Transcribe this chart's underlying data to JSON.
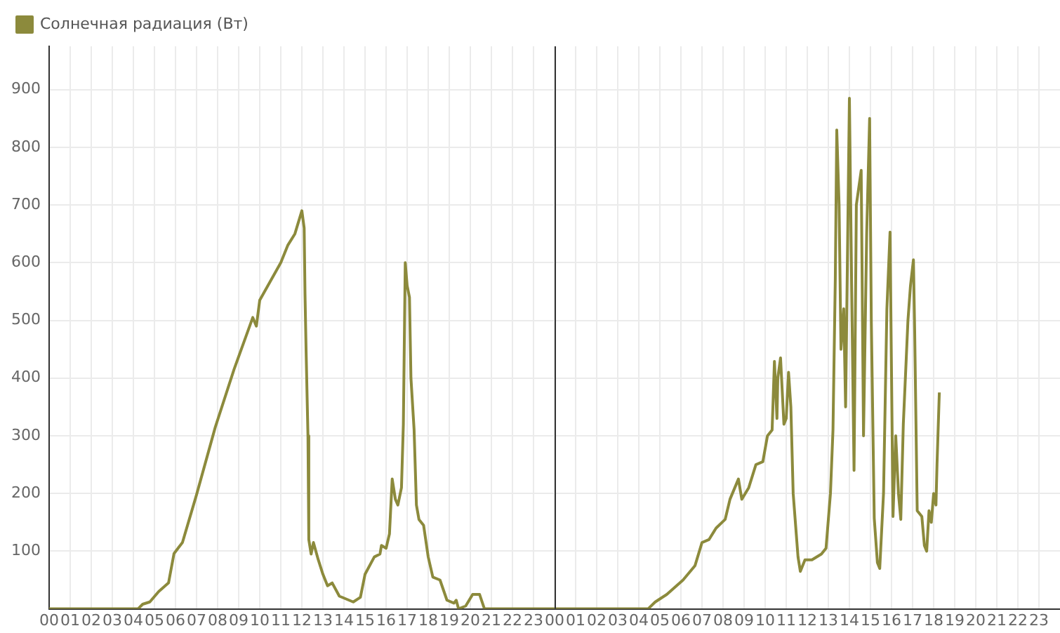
{
  "chart_data": {
    "type": "line",
    "legend": "top left",
    "grid": true,
    "marker": "none",
    "line_style": "solid",
    "xlim": [
      0,
      48
    ],
    "ylim": [
      0,
      975
    ],
    "xticks": [
      {
        "value": 0,
        "label": "00"
      },
      {
        "value": 1,
        "label": "01"
      },
      {
        "value": 2,
        "label": "02"
      },
      {
        "value": 3,
        "label": "03"
      },
      {
        "value": 4,
        "label": "04"
      },
      {
        "value": 5,
        "label": "05"
      },
      {
        "value": 6,
        "label": "06"
      },
      {
        "value": 7,
        "label": "07"
      },
      {
        "value": 8,
        "label": "08"
      },
      {
        "value": 9,
        "label": "09"
      },
      {
        "value": 10,
        "label": "10"
      },
      {
        "value": 11,
        "label": "11"
      },
      {
        "value": 12,
        "label": "12"
      },
      {
        "value": 13,
        "label": "13"
      },
      {
        "value": 14,
        "label": "14"
      },
      {
        "value": 15,
        "label": "15"
      },
      {
        "value": 16,
        "label": "16"
      },
      {
        "value": 17,
        "label": "17"
      },
      {
        "value": 18,
        "label": "18"
      },
      {
        "value": 19,
        "label": "19"
      },
      {
        "value": 20,
        "label": "20"
      },
      {
        "value": 21,
        "label": "21"
      },
      {
        "value": 22,
        "label": "22"
      },
      {
        "value": 23,
        "label": "23"
      },
      {
        "value": 24,
        "label": "00"
      },
      {
        "value": 25,
        "label": "01"
      },
      {
        "value": 26,
        "label": "02"
      },
      {
        "value": 27,
        "label": "03"
      },
      {
        "value": 28,
        "label": "04"
      },
      {
        "value": 29,
        "label": "05"
      },
      {
        "value": 30,
        "label": "06"
      },
      {
        "value": 31,
        "label": "07"
      },
      {
        "value": 32,
        "label": "08"
      },
      {
        "value": 33,
        "label": "09"
      },
      {
        "value": 34,
        "label": "10"
      },
      {
        "value": 35,
        "label": "11"
      },
      {
        "value": 36,
        "label": "12"
      },
      {
        "value": 37,
        "label": "13"
      },
      {
        "value": 38,
        "label": "14"
      },
      {
        "value": 39,
        "label": "15"
      },
      {
        "value": 40,
        "label": "16"
      },
      {
        "value": 41,
        "label": "17"
      },
      {
        "value": 42,
        "label": "18"
      },
      {
        "value": 43,
        "label": "19"
      },
      {
        "value": 44,
        "label": "20"
      },
      {
        "value": 45,
        "label": "21"
      },
      {
        "value": 46,
        "label": "22"
      },
      {
        "value": 47,
        "label": "23"
      }
    ],
    "yticks": [
      100,
      200,
      300,
      400,
      500,
      600,
      700,
      800,
      900
    ],
    "ref_lines": [
      {
        "axis": "x",
        "value": 24,
        "label": null,
        "color": "#333333"
      }
    ],
    "series": [
      {
        "name": "Солнечная радиация (Вт)",
        "color": "#8c8a3c",
        "x": [
          0,
          4.22,
          4.44,
          4.78,
          5.2,
          5.67,
          5.93,
          6.33,
          7.0,
          7.89,
          8.78,
          9.67,
          9.84,
          10.0,
          11.0,
          11.33,
          11.67,
          12.0,
          12.11,
          12.15,
          12.2,
          12.29,
          12.33,
          12.44,
          12.55,
          12.78,
          13.0,
          13.22,
          13.44,
          13.78,
          14.44,
          14.78,
          15.0,
          15.44,
          15.71,
          15.78,
          16.0,
          16.16,
          16.29,
          16.44,
          16.56,
          16.73,
          16.82,
          16.91,
          17.0,
          17.11,
          17.18,
          17.33,
          17.44,
          17.56,
          17.78,
          18.0,
          18.22,
          18.56,
          18.89,
          19.22,
          19.33,
          19.44,
          19.78,
          20.11,
          20.44,
          20.67,
          24,
          28.44,
          28.78,
          29.33,
          30.1,
          30.67,
          31.0,
          31.33,
          31.67,
          32.1,
          32.33,
          32.73,
          32.89,
          33.22,
          33.56,
          33.89,
          34.11,
          34.33,
          34.44,
          34.56,
          34.6,
          34.73,
          34.89,
          35.0,
          35.11,
          35.22,
          35.33,
          35.56,
          35.67,
          35.89,
          36.22,
          36.67,
          36.89,
          37.1,
          37.22,
          37.33,
          37.4,
          37.51,
          37.6,
          37.73,
          37.82,
          38.0,
          38.11,
          38.22,
          38.33,
          38.56,
          38.67,
          38.82,
          38.96,
          39.04,
          39.18,
          39.33,
          39.44,
          39.62,
          39.78,
          39.93,
          40.07,
          40.2,
          40.33,
          40.44,
          40.56,
          40.78,
          40.9,
          41.04,
          41.1,
          41.22,
          41.44,
          41.56,
          41.67,
          41.78,
          41.89,
          42.0,
          42.11,
          42.16,
          42.27
        ],
        "values": [
          0,
          0,
          8,
          12,
          30,
          45,
          96,
          115,
          198,
          315,
          415,
          505,
          490,
          535,
          600,
          630,
          650,
          690,
          660,
          545,
          450,
          300,
          120,
          95,
          115,
          85,
          60,
          40,
          45,
          22,
          12,
          20,
          60,
          90,
          95,
          110,
          105,
          130,
          225,
          190,
          180,
          210,
          320,
          600,
          560,
          540,
          400,
          310,
          180,
          155,
          145,
          90,
          55,
          50,
          15,
          10,
          15,
          0,
          5,
          25,
          25,
          0,
          0,
          0,
          12,
          25,
          50,
          75,
          115,
          120,
          140,
          155,
          190,
          225,
          190,
          210,
          250,
          255,
          300,
          310,
          429,
          330,
          400,
          435,
          320,
          330,
          410,
          350,
          200,
          90,
          65,
          85,
          85,
          95,
          105,
          200,
          310,
          571,
          830,
          700,
          450,
          520,
          350,
          885,
          550,
          240,
          700,
          760,
          300,
          650,
          850,
          500,
          157,
          80,
          70,
          200,
          520,
          653,
          160,
          300,
          200,
          155,
          320,
          500,
          560,
          605,
          480,
          170,
          160,
          110,
          100,
          170,
          150,
          200,
          180,
          250,
          375
        ]
      }
    ]
  }
}
